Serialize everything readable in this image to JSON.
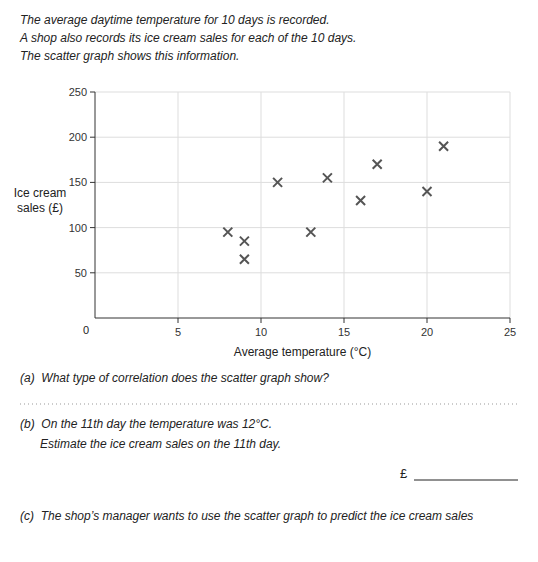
{
  "chart_data": {
    "type": "scatter",
    "title": [
      "The average daytime temperature for 10 days is recorded.",
      "A shop also records its ice cream sales for each of the 10 days.",
      "The scatter graph shows this information."
    ],
    "x": [
      8,
      9,
      9,
      11,
      13,
      14,
      16,
      17,
      20,
      21
    ],
    "values": [
      95,
      85,
      65,
      150,
      95,
      155,
      130,
      170,
      140,
      190
    ],
    "x_label": "Average temperature (°C)",
    "y_label": "Ice cream\nsales (£)",
    "xlim": [
      0,
      25
    ],
    "ylim": [
      0,
      250
    ],
    "xticks": [
      5,
      10,
      15,
      20,
      25
    ],
    "yticks": [
      50,
      100,
      150,
      200,
      250
    ],
    "grid": true,
    "color": "#555555",
    "marker": "x",
    "annotations": [
      "0",
      "(a)  What type of correlation does the scatter graph show?",
      "(b)  On the 11th day the temperature was 12°C.",
      "      Estimate the ice cream sales on the 11th day.",
      "£",
      "(c)  The shop’s manager wants to use the scatter graph to predict the ice cream sales"
    ]
  }
}
